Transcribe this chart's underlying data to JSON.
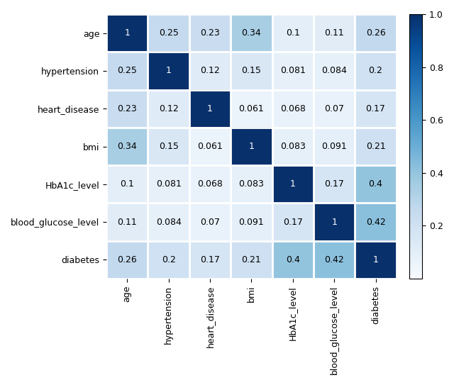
{
  "labels": [
    "age",
    "hypertension",
    "heart_disease",
    "bmi",
    "HbA1c_level",
    "blood_glucose_level",
    "diabetes"
  ],
  "matrix": [
    [
      1.0,
      0.25,
      0.23,
      0.34,
      0.1,
      0.11,
      0.26
    ],
    [
      0.25,
      1.0,
      0.12,
      0.15,
      0.081,
      0.084,
      0.2
    ],
    [
      0.23,
      0.12,
      1.0,
      0.061,
      0.068,
      0.07,
      0.17
    ],
    [
      0.34,
      0.15,
      0.061,
      1.0,
      0.083,
      0.091,
      0.21
    ],
    [
      0.1,
      0.081,
      0.068,
      0.083,
      1.0,
      0.17,
      0.4
    ],
    [
      0.11,
      0.084,
      0.07,
      0.091,
      0.17,
      1.0,
      0.42
    ],
    [
      0.26,
      0.2,
      0.17,
      0.21,
      0.4,
      0.42,
      1.0
    ]
  ],
  "cmap": "Blues",
  "vmin": 0.0,
  "vmax": 1.0,
  "cbar_ticks": [
    0.2,
    0.4,
    0.6,
    0.8,
    1.0
  ],
  "figsize": [
    6.4,
    5.43
  ],
  "dpi": 100,
  "annot_fontsize": 9,
  "tick_fontsize": 9
}
